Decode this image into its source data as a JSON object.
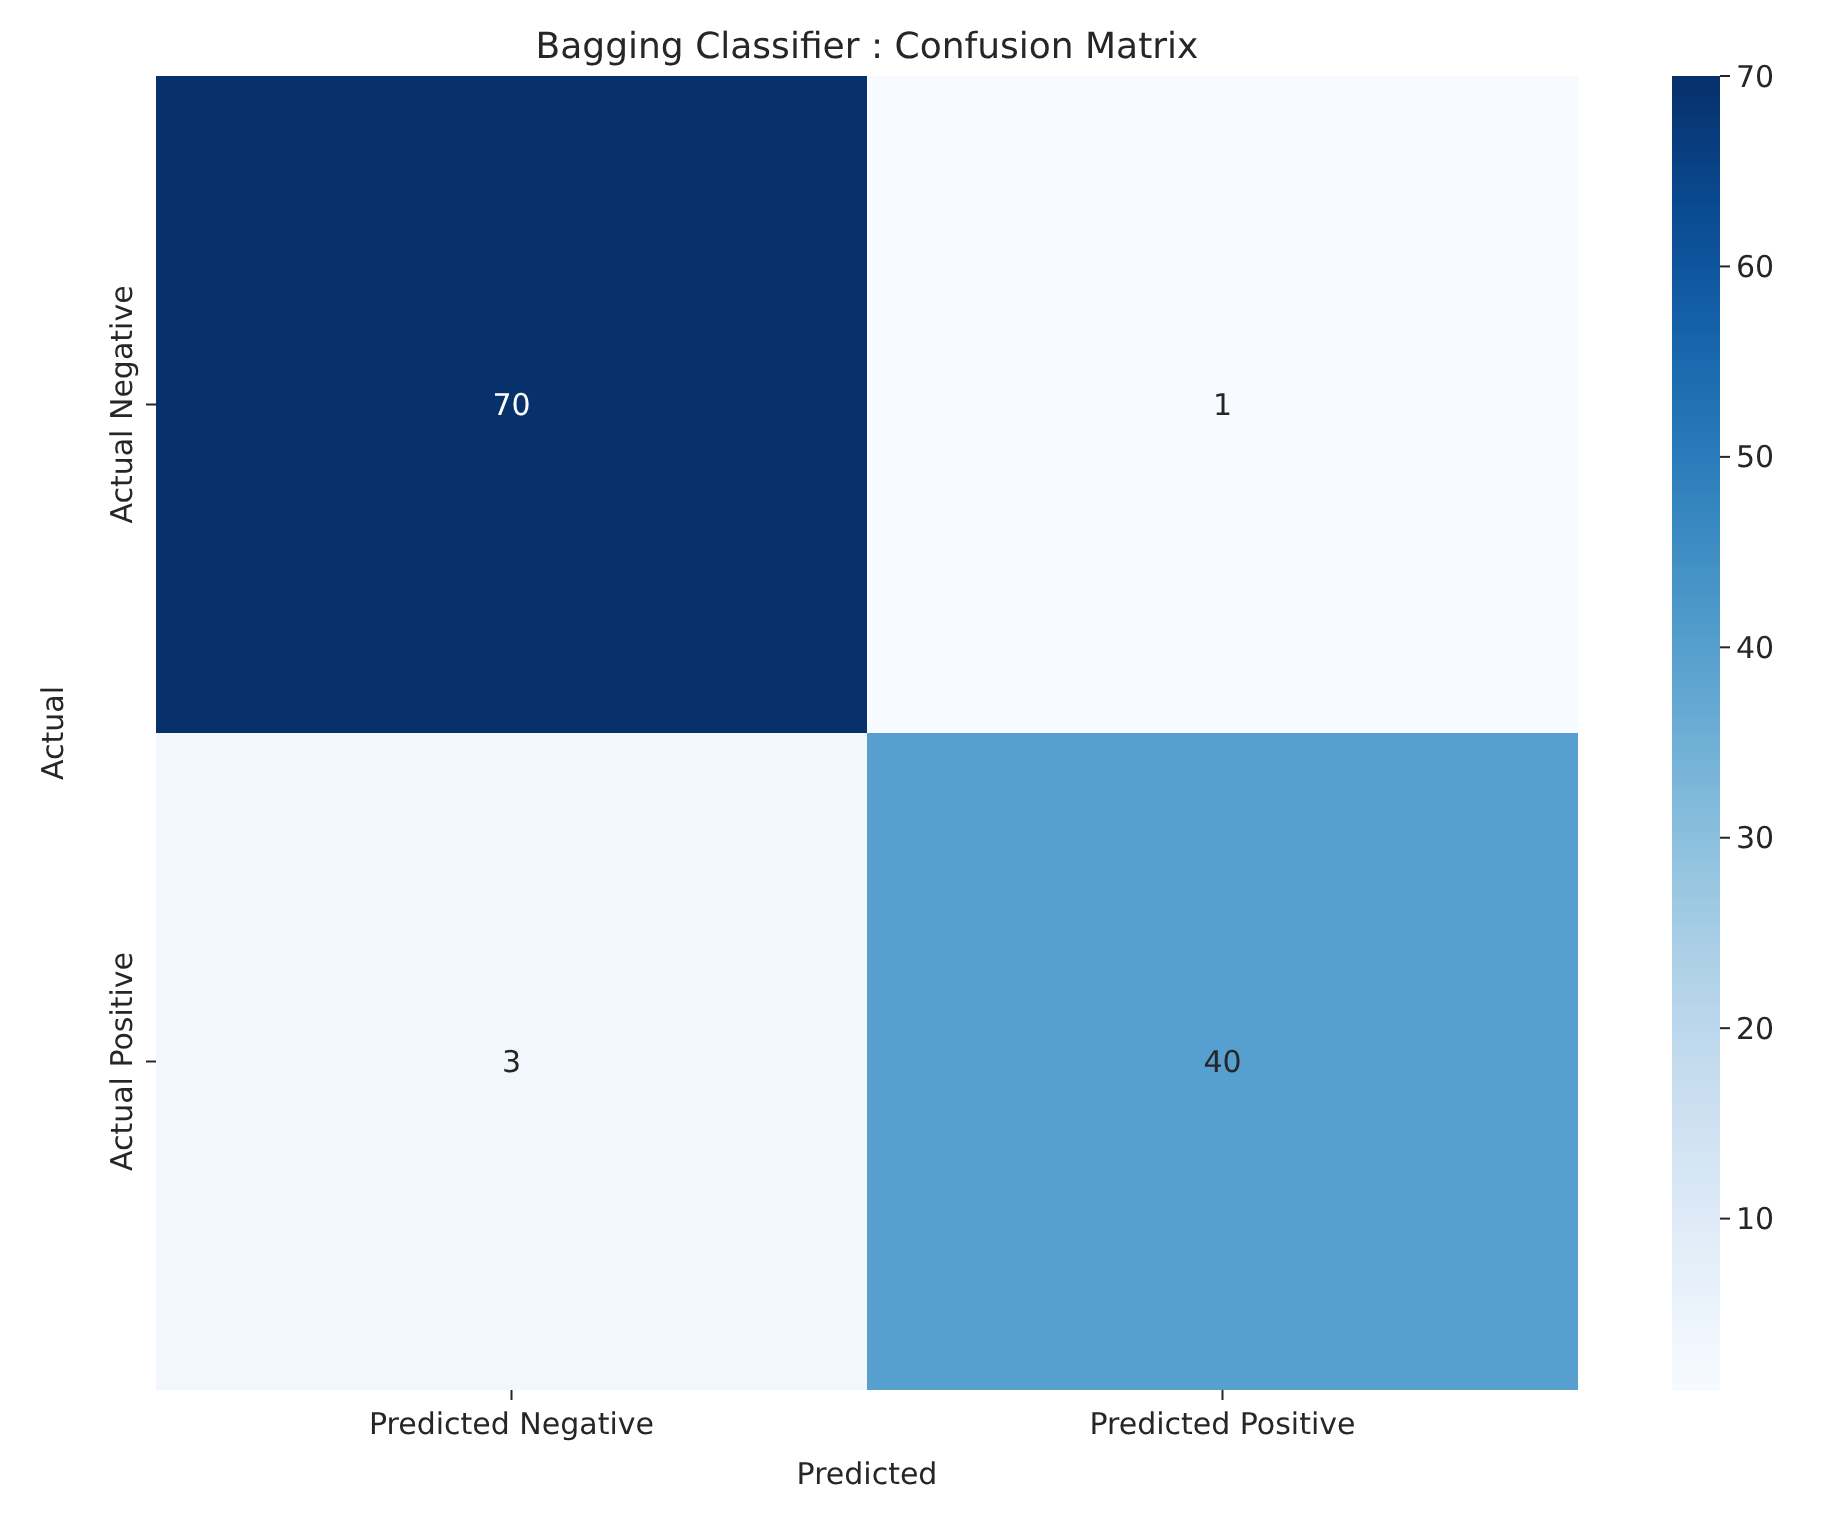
{
  "chart_data": {
    "type": "heatmap",
    "title": "Bagging Classifier : Confusion Matrix",
    "xlabel": "Predicted",
    "ylabel": "Actual",
    "categories": [
      "Predicted Negative",
      "Predicted Positive"
    ],
    "y_categories": [
      "Actual Negative",
      "Actual Positive"
    ],
    "cells": [
      [
        70,
        1
      ],
      [
        3,
        40
      ]
    ],
    "data_labels": true,
    "clim": [
      1,
      70
    ],
    "cticks": [
      10,
      20,
      30,
      40,
      50,
      60,
      70
    ]
  }
}
